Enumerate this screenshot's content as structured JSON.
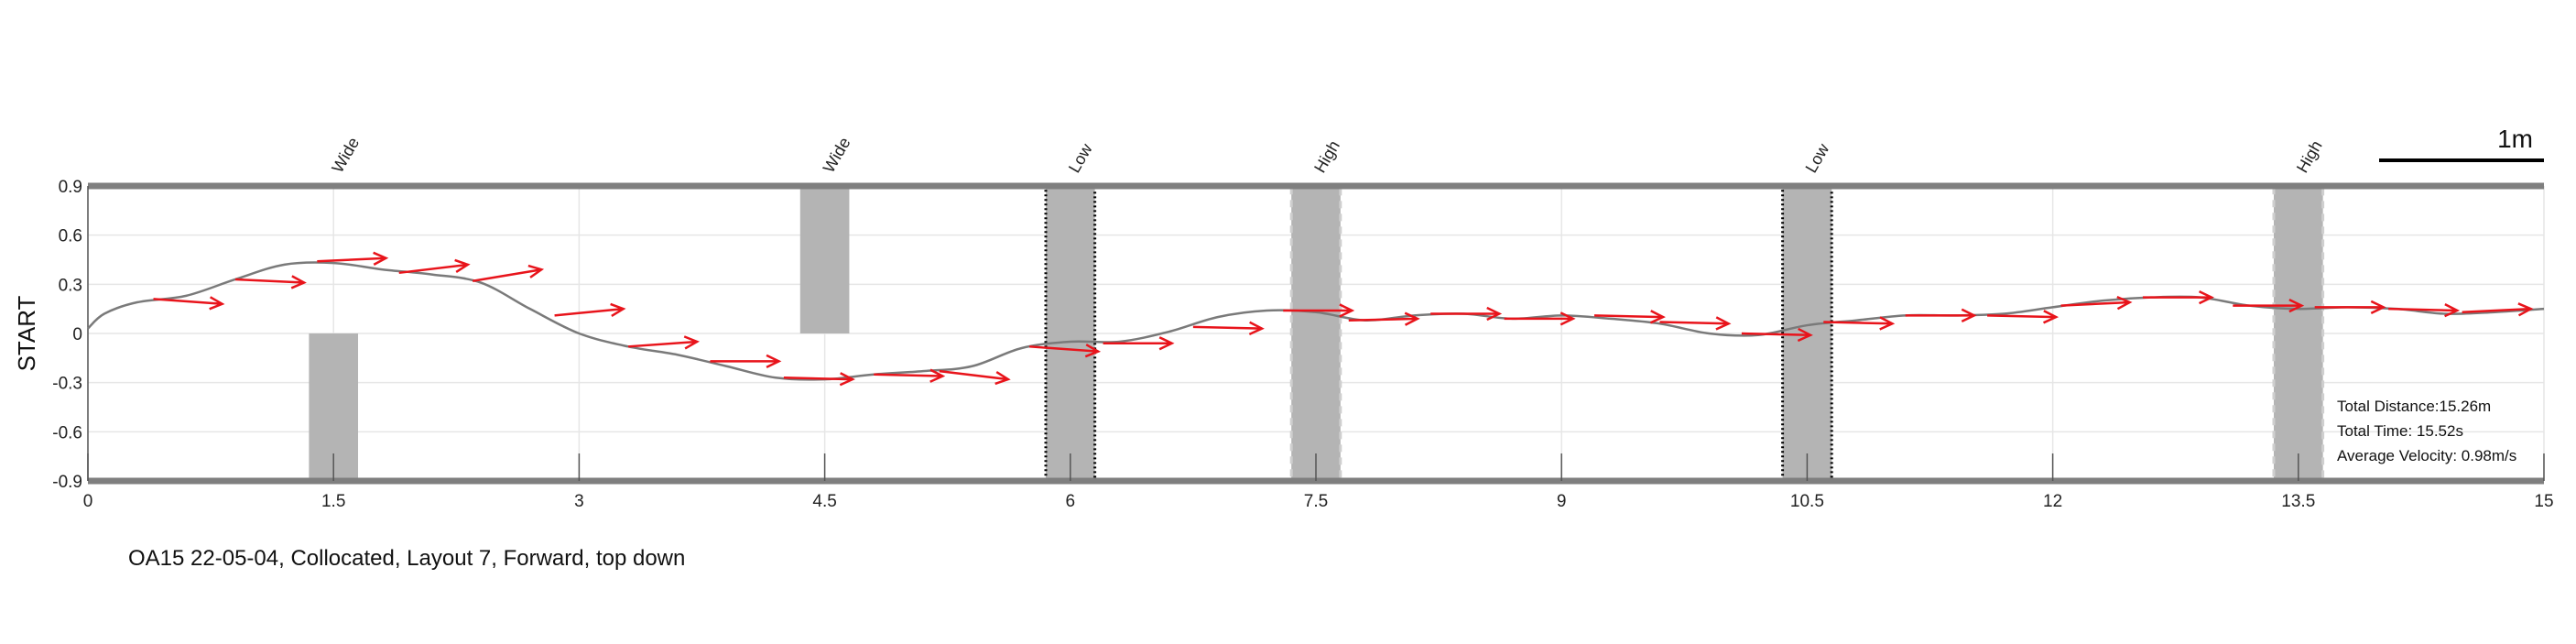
{
  "caption": "OA15 22-05-04, Collocated, Layout 7, Forward, top down",
  "colors": {
    "path": "#7a7a7a",
    "arrow": "#e8141b",
    "obstacle": "#b4b4b4",
    "wall": "#7f7f7f",
    "grid": "#e6e6e6"
  },
  "chart_data": {
    "type": "line",
    "title": "",
    "xlabel": "",
    "ylabel": "START",
    "xlim": [
      0,
      15
    ],
    "ylim": [
      -0.9,
      0.9
    ],
    "xticks": [
      "0",
      "1.5",
      "3",
      "4.5",
      "6",
      "7.5",
      "9",
      "10.5",
      "12",
      "13.5",
      "15"
    ],
    "yticks": [
      "0.9",
      "0.6",
      "0.3",
      "0",
      "-0.3",
      "-0.6",
      "-0.9"
    ],
    "grid": true,
    "scale_bar": {
      "label": "1m",
      "length": 1
    },
    "stats": [
      "Total Distance:15.26m",
      "Total Time: 15.52s",
      "Average Velocity: 0.98m/s"
    ],
    "obstacles": [
      {
        "label": "Wide",
        "x": 1.5,
        "width": 0.3,
        "y0": -0.9,
        "y1": 0,
        "style": "solid"
      },
      {
        "label": "Wide",
        "x": 4.5,
        "width": 0.3,
        "y0": 0,
        "y1": 0.9,
        "style": "solid"
      },
      {
        "label": "Low",
        "x": 6.0,
        "width": 0.3,
        "y0": -0.9,
        "y1": 0.9,
        "style": "dotted"
      },
      {
        "label": "High",
        "x": 7.5,
        "width": 0.3,
        "y0": -0.9,
        "y1": 0.9,
        "style": "dashed"
      },
      {
        "label": "Low",
        "x": 10.5,
        "width": 0.3,
        "y0": -0.9,
        "y1": 0.9,
        "style": "dotted"
      },
      {
        "label": "High",
        "x": 13.5,
        "width": 0.3,
        "y0": -0.9,
        "y1": 0.9,
        "style": "dashed"
      }
    ],
    "path": {
      "x": [
        0,
        0.1,
        0.3,
        0.6,
        0.9,
        1.2,
        1.5,
        1.8,
        2.1,
        2.4,
        2.7,
        3.0,
        3.3,
        3.6,
        3.9,
        4.2,
        4.5,
        4.8,
        5.1,
        5.4,
        5.7,
        6.0,
        6.3,
        6.6,
        6.9,
        7.2,
        7.5,
        7.8,
        8.1,
        8.4,
        8.7,
        9.0,
        9.3,
        9.6,
        9.9,
        10.2,
        10.5,
        10.8,
        11.1,
        11.4,
        11.7,
        12.0,
        12.3,
        12.6,
        12.9,
        13.2,
        13.5,
        13.8,
        14.1,
        14.4,
        14.7,
        15.0
      ],
      "y": [
        0.03,
        0.12,
        0.19,
        0.23,
        0.33,
        0.42,
        0.43,
        0.39,
        0.36,
        0.31,
        0.15,
        0.0,
        -0.08,
        -0.13,
        -0.2,
        -0.27,
        -0.28,
        -0.25,
        -0.23,
        -0.2,
        -0.09,
        -0.05,
        -0.05,
        0.01,
        0.1,
        0.14,
        0.13,
        0.08,
        0.11,
        0.12,
        0.09,
        0.11,
        0.09,
        0.06,
        0.0,
        -0.01,
        0.05,
        0.08,
        0.11,
        0.11,
        0.12,
        0.16,
        0.2,
        0.22,
        0.22,
        0.17,
        0.15,
        0.16,
        0.15,
        0.12,
        0.13,
        0.15
      ]
    },
    "arrows": [
      {
        "x": 0.4,
        "y": 0.21,
        "dy": -0.03
      },
      {
        "x": 0.9,
        "y": 0.33,
        "dy": -0.02
      },
      {
        "x": 1.4,
        "y": 0.44,
        "dy": 0.02
      },
      {
        "x": 1.9,
        "y": 0.37,
        "dy": 0.05
      },
      {
        "x": 2.35,
        "y": 0.32,
        "dy": 0.07
      },
      {
        "x": 2.85,
        "y": 0.11,
        "dy": 0.04
      },
      {
        "x": 3.3,
        "y": -0.08,
        "dy": 0.03
      },
      {
        "x": 3.8,
        "y": -0.17,
        "dy": 0.0
      },
      {
        "x": 4.25,
        "y": -0.27,
        "dy": -0.01
      },
      {
        "x": 4.8,
        "y": -0.25,
        "dy": -0.01
      },
      {
        "x": 5.2,
        "y": -0.23,
        "dy": -0.05
      },
      {
        "x": 5.75,
        "y": -0.08,
        "dy": -0.03
      },
      {
        "x": 6.2,
        "y": -0.06,
        "dy": 0.0
      },
      {
        "x": 6.75,
        "y": 0.04,
        "dy": -0.01
      },
      {
        "x": 7.3,
        "y": 0.14,
        "dy": 0.0
      },
      {
        "x": 7.7,
        "y": 0.08,
        "dy": 0.01
      },
      {
        "x": 8.2,
        "y": 0.12,
        "dy": 0.0
      },
      {
        "x": 8.65,
        "y": 0.09,
        "dy": 0.0
      },
      {
        "x": 9.2,
        "y": 0.11,
        "dy": -0.01
      },
      {
        "x": 9.6,
        "y": 0.07,
        "dy": -0.01
      },
      {
        "x": 10.1,
        "y": 0.0,
        "dy": -0.01
      },
      {
        "x": 10.6,
        "y": 0.07,
        "dy": -0.01
      },
      {
        "x": 11.1,
        "y": 0.11,
        "dy": 0.0
      },
      {
        "x": 11.6,
        "y": 0.11,
        "dy": -0.01
      },
      {
        "x": 12.05,
        "y": 0.17,
        "dy": 0.02
      },
      {
        "x": 12.55,
        "y": 0.22,
        "dy": 0.0
      },
      {
        "x": 13.1,
        "y": 0.17,
        "dy": 0.0
      },
      {
        "x": 13.6,
        "y": 0.16,
        "dy": 0.0
      },
      {
        "x": 14.05,
        "y": 0.15,
        "dy": -0.01
      },
      {
        "x": 14.5,
        "y": 0.13,
        "dy": 0.02
      }
    ]
  }
}
